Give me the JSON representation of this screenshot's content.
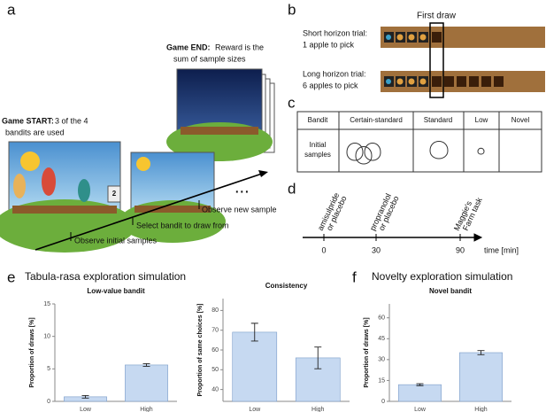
{
  "letters": [
    "a",
    "b",
    "c",
    "d",
    "e",
    "f"
  ],
  "panel_a": {
    "game_end_bold": "Game END:",
    "game_end_lines": [
      "Reward is the",
      "sum of sample sizes"
    ],
    "game_start_bold": "Game START:",
    "game_start_lines": [
      "3 of the 4",
      "bandits are used"
    ],
    "observe_new": "Observe new sample",
    "select": "Select bandit to draw from",
    "observe_initial": "Observe initial samples",
    "ellipsis": "...",
    "card": "2"
  },
  "panel_b": {
    "first_draw": "First draw",
    "short_lines": [
      "Short horizon trial:",
      "1 apple to pick"
    ],
    "long_lines": [
      "Long horizon trial:",
      "6 apples to pick"
    ]
  },
  "panel_c": {
    "header": [
      "Bandit",
      "Certain-standard",
      "Standard",
      "Low",
      "Novel"
    ],
    "row_label": [
      "Initial",
      "samples"
    ]
  },
  "panel_d": {
    "ticks": [
      "0",
      "30",
      "90"
    ],
    "events": [
      [
        "amisulpride",
        "or placebo"
      ],
      [
        "propranolol",
        "or placebo"
      ],
      [
        "Maggie's",
        "Farm task"
      ]
    ],
    "axis_label": "time [min]"
  },
  "section_titles": [
    "Tabula-rasa exploration simulation",
    "Novelty exploration simulation"
  ],
  "chart_data": [
    {
      "type": "bar",
      "title": "Low-value bandit",
      "ylabel": "Proportion of draws [%]",
      "categories": [
        "Low",
        "High"
      ],
      "values": [
        0.7,
        5.6
      ],
      "errors": [
        0.2,
        0.2
      ],
      "color": "#c6d9f1",
      "ylim": [
        0,
        15
      ],
      "yticks": [
        0,
        5,
        10,
        15
      ]
    },
    {
      "type": "bar",
      "title": "Consistency",
      "ylabel": "Proportion of same choices [%]",
      "categories": [
        "Low",
        "High"
      ],
      "values": [
        69,
        56
      ],
      "errors": [
        4.5,
        5.5
      ],
      "color": "#c6d9f1",
      "ylim": [
        34,
        86
      ],
      "yticks": [
        40,
        50,
        60,
        70,
        80
      ]
    },
    {
      "type": "bar",
      "title": "Novel bandit",
      "ylabel": "Proportion of draws [%]",
      "categories": [
        "Low",
        "High"
      ],
      "values": [
        12,
        35
      ],
      "errors": [
        0.7,
        1.5
      ],
      "color": "#c6d9f1",
      "ylim": [
        0,
        70
      ],
      "yticks": [
        0,
        15,
        30,
        45,
        60
      ]
    }
  ]
}
